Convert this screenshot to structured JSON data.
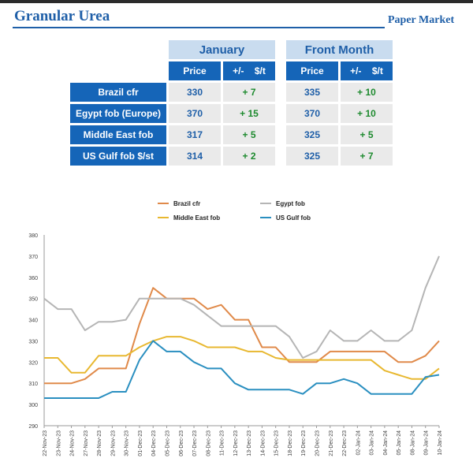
{
  "header": {
    "title": "Granular Urea",
    "subtitle": "Paper Market"
  },
  "table": {
    "groups": [
      "January",
      "Front Month"
    ],
    "columns": [
      "Price",
      "+/-    $/t",
      "Price",
      "+/-    $/t"
    ],
    "rows": [
      {
        "label": "Brazil cfr",
        "jan_price": "330",
        "jan_change": "+ 7",
        "fm_price": "335",
        "fm_change": "+ 10"
      },
      {
        "label": "Egypt fob (Europe)",
        "jan_price": "370",
        "jan_change": "+ 15",
        "fm_price": "370",
        "fm_change": "+ 10"
      },
      {
        "label": "Middle East fob",
        "jan_price": "317",
        "jan_change": "+ 5",
        "fm_price": "325",
        "fm_change": "+ 5"
      },
      {
        "label": "US Gulf fob $/st",
        "jan_price": "314",
        "jan_change": "+ 2",
        "fm_price": "325",
        "fm_change": "+ 7"
      }
    ]
  },
  "chart_data": {
    "type": "line",
    "ylim": [
      290,
      380
    ],
    "yticks": [
      290,
      300,
      310,
      320,
      330,
      340,
      350,
      360,
      370,
      380
    ],
    "grid": false,
    "legend_position": "top",
    "categories": [
      "22-Nov-23",
      "23-Nov-23",
      "24-Nov-23",
      "27-Nov-23",
      "28-Nov-23",
      "29-Nov-23",
      "30-Nov-23",
      "01-Dec-23",
      "04-Dec-23",
      "05-Dec-23",
      "06-Dec-23",
      "07-Dec-23",
      "08-Dec-23",
      "11-Dec-23",
      "12-Dec-23",
      "13-Dec-23",
      "14-Dec-23",
      "15-Dec-23",
      "18-Dec-23",
      "19-Dec-23",
      "20-Dec-23",
      "21-Dec-23",
      "22-Dec-23",
      "02-Jan-24",
      "03-Jan-24",
      "04-Jan-24",
      "05-Jan-24",
      "08-Jan-24",
      "09-Jan-24",
      "10-Jan-24"
    ],
    "series": [
      {
        "name": "Brazil cfr",
        "color": "#e08a4a",
        "values": [
          310,
          310,
          310,
          312,
          317,
          317,
          317,
          338,
          355,
          350,
          350,
          350,
          345,
          347,
          340,
          340,
          327,
          327,
          320,
          320,
          320,
          325,
          325,
          325,
          325,
          325,
          320,
          320,
          323,
          330
        ]
      },
      {
        "name": "Egypt fob",
        "color": "#b5b5b5",
        "values": [
          350,
          345,
          345,
          335,
          339,
          339,
          340,
          350,
          350,
          350,
          350,
          347,
          342,
          337,
          337,
          337,
          337,
          337,
          332,
          322,
          325,
          335,
          330,
          330,
          335,
          330,
          330,
          335,
          355,
          370
        ]
      },
      {
        "name": "Middle East fob",
        "color": "#e8b830",
        "values": [
          322,
          322,
          315,
          315,
          323,
          323,
          323,
          327,
          330,
          332,
          332,
          330,
          327,
          327,
          327,
          325,
          325,
          322,
          321,
          321,
          321,
          321,
          321,
          321,
          321,
          316,
          314,
          312,
          312,
          317
        ]
      },
      {
        "name": "US Gulf fob",
        "color": "#2a8fc0",
        "values": [
          303,
          303,
          303,
          303,
          303,
          306,
          306,
          321,
          330,
          325,
          325,
          320,
          317,
          317,
          310,
          307,
          307,
          307,
          307,
          305,
          310,
          310,
          312,
          310,
          305,
          305,
          305,
          305,
          313,
          314
        ]
      }
    ]
  }
}
